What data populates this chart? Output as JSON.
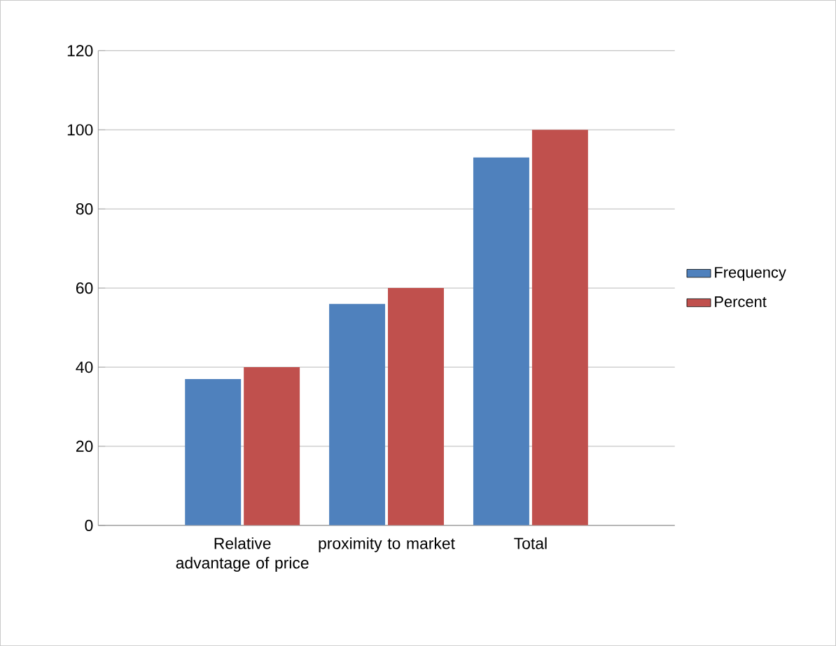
{
  "chart_data": {
    "type": "bar",
    "categories": [
      "Relative advantage of price",
      "proximity to market",
      "Total"
    ],
    "series": [
      {
        "name": "Frequency",
        "color": "#4f81bd",
        "values": [
          37,
          56,
          93
        ]
      },
      {
        "name": "Percent",
        "color": "#c0504d",
        "values": [
          40,
          60,
          100
        ]
      }
    ],
    "ylim": [
      0,
      120
    ],
    "yticks": [
      0,
      20,
      40,
      60,
      80,
      100,
      120
    ],
    "grid": "y",
    "legend": "right"
  }
}
